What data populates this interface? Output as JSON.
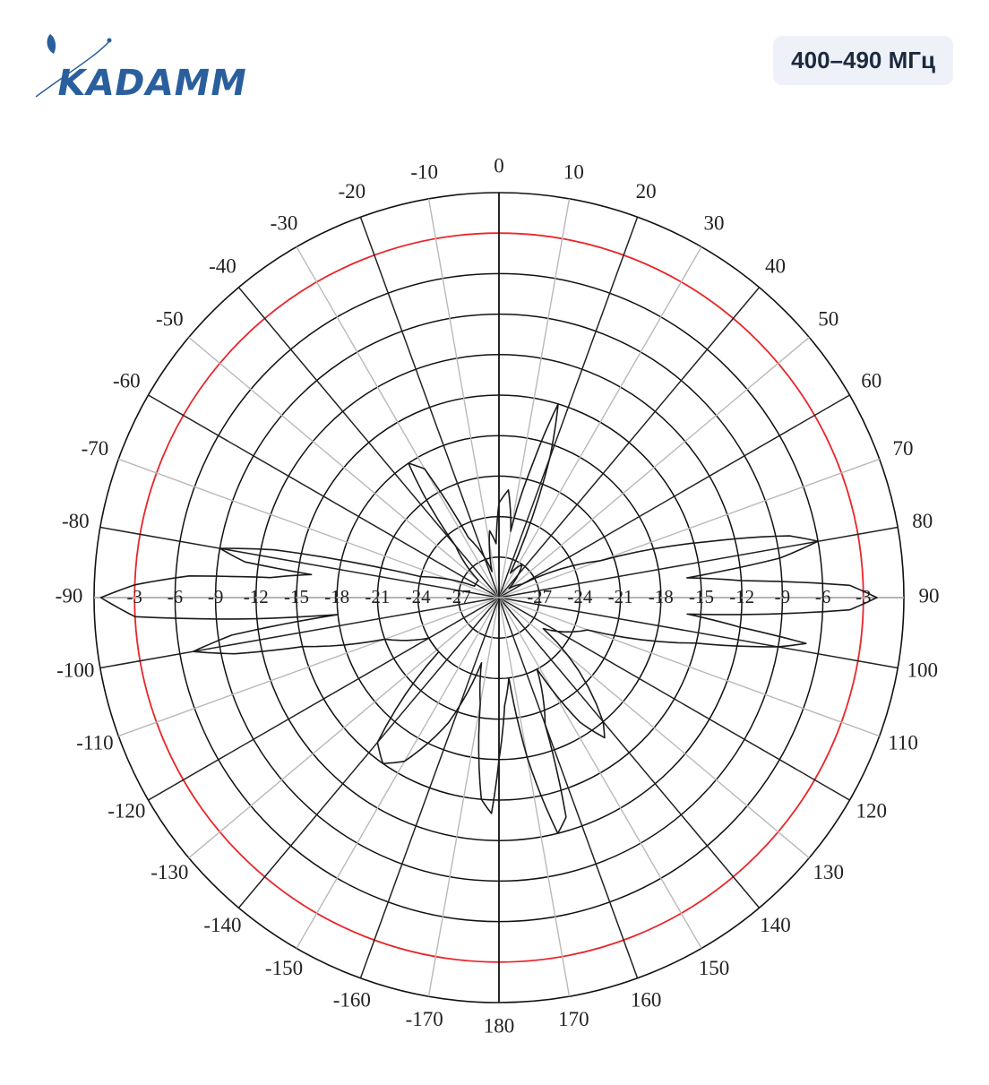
{
  "brand": {
    "name": "KADAMM",
    "accent": "#2a5f9e"
  },
  "badge": {
    "label": "400–490 МГц"
  },
  "chart_data": {
    "type": "polar",
    "angle_labels": [
      "0",
      "10",
      "20",
      "30",
      "40",
      "50",
      "60",
      "70",
      "80",
      "90",
      "100",
      "110",
      "120",
      "130",
      "140",
      "150",
      "160",
      "170",
      "180",
      "-170",
      "-160",
      "-150",
      "-140",
      "-130",
      "-120",
      "-110",
      "-100",
      "-90",
      "-80",
      "-70",
      "-60",
      "-50",
      "-40",
      "-30",
      "-20",
      "-10"
    ],
    "angle_values": [
      0,
      10,
      20,
      30,
      40,
      50,
      60,
      70,
      80,
      90,
      100,
      110,
      120,
      130,
      140,
      150,
      160,
      170,
      180,
      -170,
      -160,
      -150,
      -140,
      -130,
      -120,
      -110,
      -100,
      -90,
      -80,
      -70,
      -60,
      -50,
      -40,
      -30,
      -20,
      -10
    ],
    "radial_tick_labels": [
      "-3",
      "-6",
      "-9",
      "-12",
      "-15",
      "-18",
      "-21",
      "-24",
      "-27"
    ],
    "radial_ticks_db": [
      -3,
      -6,
      -9,
      -12,
      -15,
      -18,
      -21,
      -24,
      -27
    ],
    "r_range_db": [
      -30,
      0
    ],
    "reference_ring_db": -3,
    "reference_ring_color": "#e8262a",
    "grid": true,
    "series": [
      {
        "points": [
          [
            0,
            -23
          ],
          [
            5,
            -22
          ],
          [
            10,
            -25
          ],
          [
            14,
            -20
          ],
          [
            17,
            -15
          ],
          [
            20,
            -19
          ],
          [
            25,
            -28
          ],
          [
            35,
            -27
          ],
          [
            48,
            -29
          ],
          [
            60,
            -28
          ],
          [
            70,
            -22
          ],
          [
            75,
            -14
          ],
          [
            78,
            -8
          ],
          [
            80,
            -6
          ],
          [
            82,
            -9
          ],
          [
            84,
            -16
          ],
          [
            86,
            -12
          ],
          [
            88,
            -4
          ],
          [
            90,
            -2
          ],
          [
            92,
            -4
          ],
          [
            95,
            -16
          ],
          [
            97,
            -12
          ],
          [
            98.5,
            -7
          ],
          [
            100,
            -9
          ],
          [
            103,
            -15
          ],
          [
            110,
            -23
          ],
          [
            125,
            -26
          ],
          [
            140,
            -18
          ],
          [
            143,
            -17
          ],
          [
            147,
            -19
          ],
          [
            152,
            -24
          ],
          [
            160,
            -20
          ],
          [
            163,
            -13
          ],
          [
            166,
            -12
          ],
          [
            170,
            -18
          ],
          [
            173,
            -24
          ],
          [
            177,
            -22
          ],
          [
            180,
            -18
          ],
          [
            -178,
            -14
          ],
          [
            -175,
            -15
          ],
          [
            -170,
            -22
          ],
          [
            -165,
            -25
          ],
          [
            -158,
            -20
          ],
          [
            -150,
            -16
          ],
          [
            -145,
            -15
          ],
          [
            -140,
            -16
          ],
          [
            -132,
            -24
          ],
          [
            -120,
            -24
          ],
          [
            -110,
            -21
          ],
          [
            -104,
            -15
          ],
          [
            -102,
            -10
          ],
          [
            -100,
            -7
          ],
          [
            -98,
            -10
          ],
          [
            -96,
            -18
          ],
          [
            -95,
            -12
          ],
          [
            -93,
            -3
          ],
          [
            -90,
            -0.5
          ],
          [
            -88,
            -3
          ],
          [
            -86,
            -7
          ],
          [
            -85,
            -13
          ],
          [
            -83,
            -16
          ],
          [
            -82,
            -11
          ],
          [
            -80,
            -9
          ],
          [
            -78,
            -13
          ],
          [
            -75,
            -24
          ],
          [
            -65,
            -28
          ],
          [
            -50,
            -28
          ],
          [
            -40,
            -25
          ],
          [
            -34,
            -18
          ],
          [
            -30,
            -19
          ],
          [
            -27,
            -25
          ],
          [
            -15,
            -28
          ],
          [
            -8,
            -25
          ],
          [
            -3,
            -26
          ],
          [
            0,
            -23
          ]
        ]
      }
    ]
  }
}
